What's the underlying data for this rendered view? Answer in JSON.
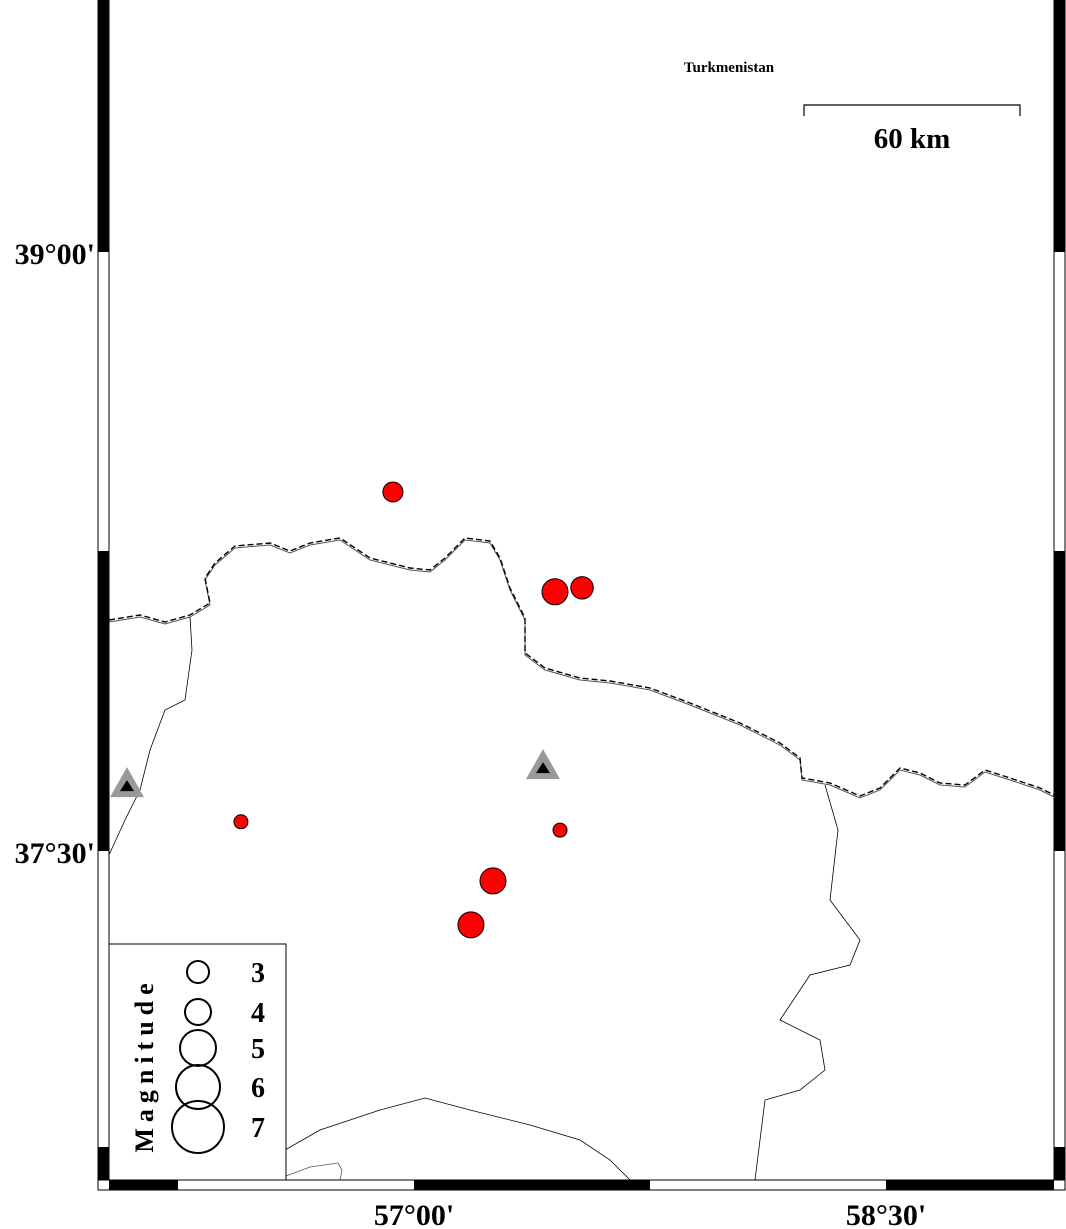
{
  "map": {
    "country_label": "Turkmenistan",
    "scale_bar_label": "60 km",
    "lat_ticks": [
      {
        "label": "39°00'",
        "lat": 39.0
      },
      {
        "label": "37°30'",
        "lat": 37.5
      }
    ],
    "lon_ticks": [
      {
        "label": "57°00'",
        "lon": 57.0
      },
      {
        "label": "58°30'",
        "lon": 58.5
      }
    ],
    "event_color": "#ff0000",
    "station_color": "#999999",
    "events": [
      {
        "lon": 56.933,
        "lat": 38.399,
        "mag": 3.0
      },
      {
        "lon": 57.448,
        "lat": 38.149,
        "mag": 3.5
      },
      {
        "lon": 57.534,
        "lat": 38.159,
        "mag": 3.2
      },
      {
        "lon": 56.45,
        "lat": 37.573,
        "mag": 2.5
      },
      {
        "lon": 57.464,
        "lat": 37.552,
        "mag": 2.5
      },
      {
        "lon": 57.251,
        "lat": 37.425,
        "mag": 3.5
      },
      {
        "lon": 57.181,
        "lat": 37.315,
        "mag": 3.5
      }
    ],
    "stations": [
      {
        "lon": 56.088,
        "lat": 37.665
      },
      {
        "lon": 57.41,
        "lat": 37.71
      }
    ]
  },
  "legend": {
    "title": "Magnitude",
    "entries": [
      {
        "label": "3",
        "mag": 3
      },
      {
        "label": "4",
        "mag": 4
      },
      {
        "label": "5",
        "mag": 5
      },
      {
        "label": "6",
        "mag": 6
      },
      {
        "label": "7",
        "mag": 7
      }
    ]
  }
}
